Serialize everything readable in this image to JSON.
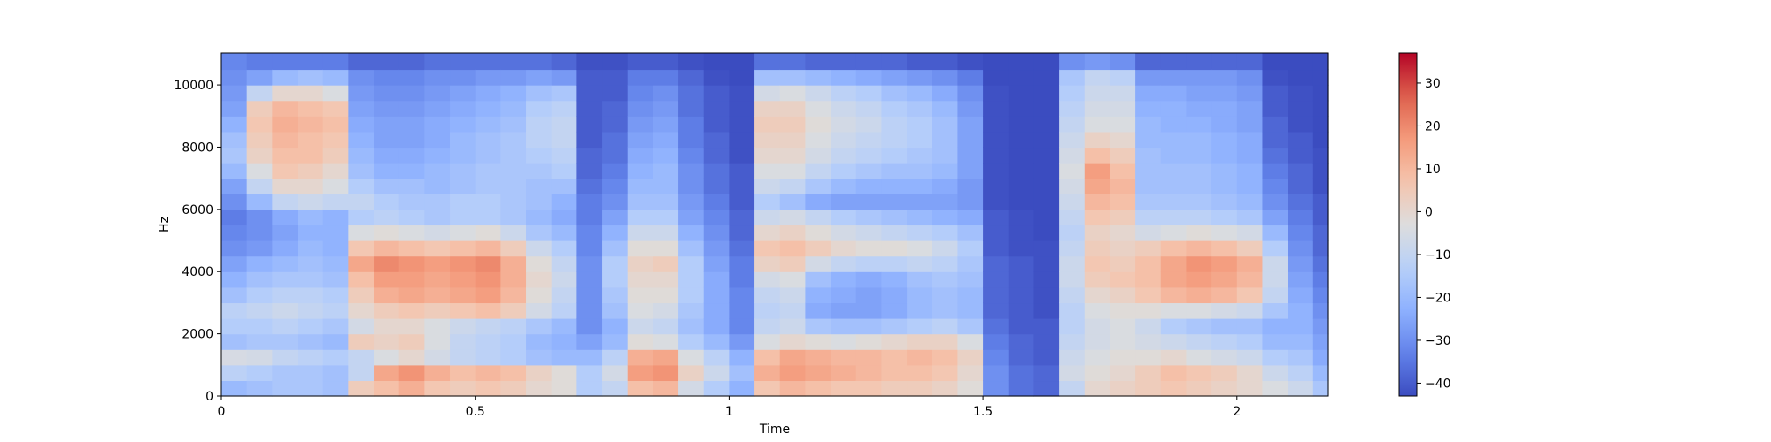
{
  "chart_data": {
    "type": "heatmap",
    "title": "",
    "xlabel": "Time",
    "ylabel": "Hz",
    "xlim": [
      0,
      2.18
    ],
    "ylim": [
      0,
      11025
    ],
    "x_ticks": [
      {
        "value": 0,
        "label": "0"
      },
      {
        "value": 0.5,
        "label": "0.5"
      },
      {
        "value": 1,
        "label": "1"
      },
      {
        "value": 1.5,
        "label": "1.5"
      },
      {
        "value": 2,
        "label": "2"
      }
    ],
    "y_ticks": [
      {
        "value": 0,
        "label": "0"
      },
      {
        "value": 2000,
        "label": "2000"
      },
      {
        "value": 4000,
        "label": "4000"
      },
      {
        "value": 6000,
        "label": "6000"
      },
      {
        "value": 8000,
        "label": "8000"
      },
      {
        "value": 10000,
        "label": "10000"
      }
    ],
    "colorbar": {
      "colormap": "coolwarm",
      "vmin": -43,
      "vmax": 37,
      "ticks": [
        {
          "value": 30,
          "label": "30"
        },
        {
          "value": 20,
          "label": "20"
        },
        {
          "value": 10,
          "label": "10"
        },
        {
          "value": 0,
          "label": "0"
        },
        {
          "value": -10,
          "label": "−10"
        },
        {
          "value": -20,
          "label": "−20"
        },
        {
          "value": -30,
          "label": "−30"
        },
        {
          "value": -40,
          "label": "−40"
        }
      ]
    },
    "time_bins": [
      0,
      0.05,
      0.1,
      0.15,
      0.2,
      0.25,
      0.3,
      0.35,
      0.4,
      0.45,
      0.5,
      0.55,
      0.6,
      0.65,
      0.7,
      0.75,
      0.8,
      0.85,
      0.9,
      0.95,
      1.0,
      1.05,
      1.1,
      1.15,
      1.2,
      1.25,
      1.3,
      1.35,
      1.4,
      1.45,
      1.5,
      1.55,
      1.6,
      1.65,
      1.7,
      1.75,
      1.8,
      1.85,
      1.9,
      1.95,
      2.0,
      2.05,
      2.1,
      2.15
    ],
    "freq_bins": [
      0,
      500,
      1000,
      1500,
      2000,
      2500,
      3000,
      3500,
      4000,
      4500,
      5000,
      5500,
      6000,
      6500,
      7000,
      7500,
      8000,
      8500,
      9000,
      9500,
      10000,
      10500
    ],
    "db_values": [
      [
        -20,
        -12,
        -5,
        -18,
        -14,
        -12,
        -18,
        -22,
        -26,
        -30,
        -32,
        -34,
        -30,
        -26,
        -20,
        -16,
        -18,
        -22,
        -26,
        -28,
        -30,
        -32
      ],
      [
        -18,
        -14,
        -6,
        -16,
        -14,
        -10,
        -14,
        -18,
        -22,
        -28,
        -30,
        -30,
        -20,
        -10,
        -4,
        2,
        4,
        6,
        4,
        -10,
        -26,
        -34
      ],
      [
        -16,
        -16,
        -10,
        -16,
        -12,
        -8,
        -12,
        -16,
        -20,
        -24,
        -26,
        -24,
        -10,
        0,
        6,
        8,
        10,
        12,
        10,
        0,
        -20,
        -34
      ],
      [
        -16,
        -16,
        -12,
        -18,
        -14,
        -10,
        -12,
        -16,
        -18,
        -20,
        -22,
        -20,
        -8,
        0,
        4,
        8,
        8,
        10,
        8,
        0,
        -18,
        -34
      ],
      [
        -18,
        -18,
        -14,
        -20,
        -16,
        -12,
        -14,
        -18,
        -20,
        -22,
        -22,
        -22,
        -10,
        -4,
        0,
        4,
        6,
        8,
        6,
        -4,
        -20,
        -34
      ],
      [
        4,
        -10,
        -10,
        4,
        -6,
        0,
        4,
        8,
        14,
        6,
        -4,
        -14,
        -10,
        -14,
        -18,
        -20,
        -22,
        -24,
        -26,
        -28,
        -30,
        -38
      ],
      [
        8,
        14,
        -4,
        2,
        0,
        4,
        12,
        16,
        20,
        10,
        -2,
        -12,
        -14,
        -18,
        -22,
        -24,
        -26,
        -26,
        -28,
        -30,
        -32,
        -38
      ],
      [
        12,
        18,
        0,
        4,
        0,
        6,
        14,
        16,
        18,
        8,
        -4,
        -14,
        -16,
        -18,
        -22,
        -24,
        -26,
        -26,
        -28,
        -30,
        -32,
        -38
      ],
      [
        6,
        12,
        -6,
        -4,
        -4,
        4,
        12,
        14,
        16,
        6,
        -6,
        -16,
        -16,
        -20,
        -20,
        -22,
        -24,
        -24,
        -26,
        -28,
        -30,
        -36
      ],
      [
        4,
        8,
        -10,
        -10,
        -8,
        6,
        14,
        16,
        18,
        8,
        -4,
        -14,
        -14,
        -18,
        -18,
        -20,
        -20,
        -22,
        -24,
        -26,
        -30,
        -36
      ],
      [
        6,
        10,
        -12,
        -12,
        -10,
        8,
        16,
        18,
        20,
        10,
        -2,
        -14,
        -14,
        -16,
        -16,
        -18,
        -18,
        -20,
        -22,
        -24,
        -28,
        -36
      ],
      [
        4,
        8,
        -14,
        -14,
        -12,
        4,
        10,
        12,
        12,
        4,
        -8,
        -16,
        -16,
        -16,
        -16,
        -16,
        -16,
        -18,
        -20,
        -22,
        -28,
        -36
      ],
      [
        0,
        2,
        -18,
        -20,
        -16,
        -6,
        -2,
        0,
        -2,
        -8,
        -16,
        -20,
        -18,
        -18,
        -16,
        -14,
        -12,
        -12,
        -14,
        -18,
        -26,
        -36
      ],
      [
        -2,
        -2,
        -20,
        -22,
        -20,
        -12,
        -10,
        -8,
        -10,
        -14,
        -20,
        -24,
        -22,
        -18,
        -14,
        -12,
        -10,
        -10,
        -12,
        -16,
        -28,
        -38
      ],
      [
        -14,
        -14,
        -20,
        -26,
        -30,
        -30,
        -30,
        -30,
        -30,
        -32,
        -32,
        -34,
        -34,
        -36,
        -38,
        -38,
        -40,
        -40,
        -40,
        -40,
        -40,
        -42
      ],
      [
        -10,
        -6,
        -12,
        -20,
        -22,
        -18,
        -16,
        -14,
        -14,
        -18,
        -22,
        -26,
        -30,
        -32,
        -34,
        -36,
        -36,
        -38,
        -38,
        -40,
        -40,
        -42
      ],
      [
        8,
        16,
        12,
        -2,
        -8,
        -4,
        -2,
        0,
        2,
        -2,
        -8,
        -14,
        -18,
        -20,
        -22,
        -24,
        -26,
        -28,
        -30,
        -32,
        -34,
        -40
      ],
      [
        10,
        18,
        14,
        -4,
        -10,
        -6,
        -2,
        0,
        4,
        -2,
        -8,
        -14,
        -18,
        -20,
        -20,
        -22,
        -24,
        -26,
        -28,
        -30,
        -34,
        -40
      ],
      [
        -6,
        2,
        -4,
        -14,
        -18,
        -16,
        -14,
        -14,
        -14,
        -18,
        -22,
        -26,
        -28,
        -30,
        -30,
        -32,
        -34,
        -34,
        -36,
        -36,
        -38,
        -42
      ],
      [
        -14,
        -8,
        -12,
        -20,
        -24,
        -24,
        -24,
        -24,
        -26,
        -28,
        -30,
        -32,
        -34,
        -36,
        -36,
        -38,
        -38,
        -40,
        -40,
        -40,
        -42,
        -43
      ],
      [
        -22,
        -18,
        -22,
        -28,
        -32,
        -32,
        -32,
        -34,
        -34,
        -36,
        -38,
        -38,
        -40,
        -40,
        -40,
        -42,
        -42,
        -42,
        -42,
        -42,
        -43,
        -43
      ],
      [
        6,
        12,
        8,
        -4,
        -10,
        -12,
        -10,
        -6,
        2,
        6,
        0,
        -8,
        -14,
        -8,
        -4,
        0,
        2,
        4,
        2,
        -6,
        -18,
        -36
      ],
      [
        10,
        16,
        14,
        0,
        -8,
        -10,
        -8,
        -4,
        4,
        8,
        2,
        -6,
        -18,
        -10,
        -4,
        0,
        2,
        4,
        2,
        -4,
        -18,
        -36
      ],
      [
        8,
        14,
        12,
        -2,
        -16,
        -24,
        -22,
        -18,
        -6,
        4,
        -2,
        -10,
        -24,
        -16,
        -10,
        -6,
        -4,
        -2,
        -4,
        -8,
        -20,
        -38
      ],
      [
        6,
        12,
        10,
        -4,
        -18,
        -26,
        -24,
        -22,
        -10,
        0,
        -6,
        -14,
        -26,
        -20,
        -14,
        -10,
        -8,
        -6,
        -8,
        -12,
        -22,
        -38
      ],
      [
        6,
        10,
        10,
        -2,
        -18,
        -26,
        -26,
        -24,
        -12,
        -2,
        -8,
        -16,
        -26,
        -22,
        -16,
        -12,
        -10,
        -8,
        -10,
        -14,
        -24,
        -38
      ],
      [
        4,
        8,
        8,
        0,
        -16,
        -24,
        -24,
        -22,
        -12,
        -2,
        -10,
        -18,
        -26,
        -22,
        -18,
        -14,
        -12,
        -12,
        -14,
        -18,
        -26,
        -38
      ],
      [
        4,
        8,
        10,
        2,
        -14,
        -20,
        -20,
        -18,
        -10,
        -4,
        -12,
        -20,
        -26,
        -22,
        -18,
        -16,
        -14,
        -14,
        -16,
        -20,
        -28,
        -40
      ],
      [
        2,
        6,
        8,
        2,
        -12,
        -18,
        -18,
        -16,
        -12,
        -8,
        -14,
        -22,
        -26,
        -24,
        -20,
        -18,
        -18,
        -18,
        -20,
        -24,
        -30,
        -40
      ],
      [
        -2,
        0,
        2,
        -4,
        -16,
        -20,
        -20,
        -18,
        -16,
        -14,
        -18,
        -24,
        -28,
        -28,
        -26,
        -26,
        -26,
        -26,
        -28,
        -30,
        -34,
        -42
      ],
      [
        -30,
        -30,
        -32,
        -34,
        -36,
        -38,
        -38,
        -38,
        -38,
        -40,
        -40,
        -40,
        -42,
        -42,
        -42,
        -42,
        -42,
        -42,
        -42,
        -42,
        -43,
        -43
      ],
      [
        -36,
        -36,
        -38,
        -38,
        -40,
        -40,
        -40,
        -40,
        -40,
        -42,
        -42,
        -42,
        -43,
        -43,
        -43,
        -43,
        -43,
        -43,
        -43,
        -43,
        -43,
        -43
      ],
      [
        -38,
        -38,
        -40,
        -40,
        -40,
        -42,
        -42,
        -42,
        -42,
        -42,
        -43,
        -43,
        -43,
        -43,
        -43,
        -43,
        -43,
        -43,
        -43,
        -43,
        -43,
        -43
      ],
      [
        -10,
        -6,
        -8,
        -10,
        -12,
        -12,
        -10,
        -8,
        -8,
        -10,
        -12,
        -10,
        -8,
        -6,
        -4,
        -6,
        -8,
        -10,
        -12,
        -14,
        -16,
        -30
      ],
      [
        0,
        -2,
        -4,
        -6,
        -6,
        -4,
        0,
        4,
        6,
        4,
        2,
        6,
        10,
        14,
        16,
        8,
        2,
        -4,
        -6,
        -8,
        -10,
        -28
      ],
      [
        2,
        0,
        -2,
        -4,
        -4,
        -2,
        2,
        6,
        4,
        2,
        0,
        4,
        8,
        10,
        8,
        4,
        0,
        -4,
        -6,
        -8,
        -12,
        -30
      ],
      [
        4,
        4,
        -2,
        -6,
        -8,
        -2,
        6,
        8,
        8,
        4,
        -6,
        -12,
        -16,
        -18,
        -18,
        -18,
        -20,
        -20,
        -22,
        -24,
        -28,
        -38
      ],
      [
        6,
        8,
        0,
        -8,
        -14,
        -4,
        10,
        14,
        14,
        8,
        -4,
        -12,
        -16,
        -18,
        -18,
        -20,
        -20,
        -22,
        -22,
        -24,
        -28,
        -38
      ],
      [
        4,
        6,
        -4,
        -10,
        -16,
        -4,
        12,
        16,
        18,
        10,
        -2,
        -12,
        -16,
        -18,
        -18,
        -20,
        -20,
        -22,
        -24,
        -26,
        -28,
        -38
      ],
      [
        2,
        4,
        -6,
        -12,
        -18,
        -6,
        10,
        14,
        16,
        8,
        -4,
        -14,
        -18,
        -20,
        -20,
        -22,
        -22,
        -24,
        -24,
        -26,
        -28,
        -38
      ],
      [
        0,
        0,
        -8,
        -14,
        -18,
        -8,
        6,
        10,
        12,
        4,
        -6,
        -16,
        -20,
        -22,
        -22,
        -24,
        -24,
        -26,
        -26,
        -28,
        -30,
        -38
      ],
      [
        -4,
        -8,
        -14,
        -20,
        -22,
        -16,
        -10,
        -8,
        -8,
        -14,
        -20,
        -26,
        -30,
        -32,
        -34,
        -36,
        -38,
        -38,
        -40,
        -40,
        -42,
        -43
      ],
      [
        -8,
        -12,
        -16,
        -20,
        -22,
        -22,
        -24,
        -26,
        -28,
        -30,
        -32,
        -34,
        -36,
        -38,
        -38,
        -40,
        -40,
        -42,
        -42,
        -42,
        -43,
        -43
      ],
      [
        -16,
        -20,
        -24,
        -26,
        -28,
        -30,
        -32,
        -34,
        -36,
        -38,
        -38,
        -40,
        -40,
        -42,
        -42,
        -42,
        -43,
        -43,
        -43,
        -43,
        -43,
        -43
      ]
    ]
  }
}
